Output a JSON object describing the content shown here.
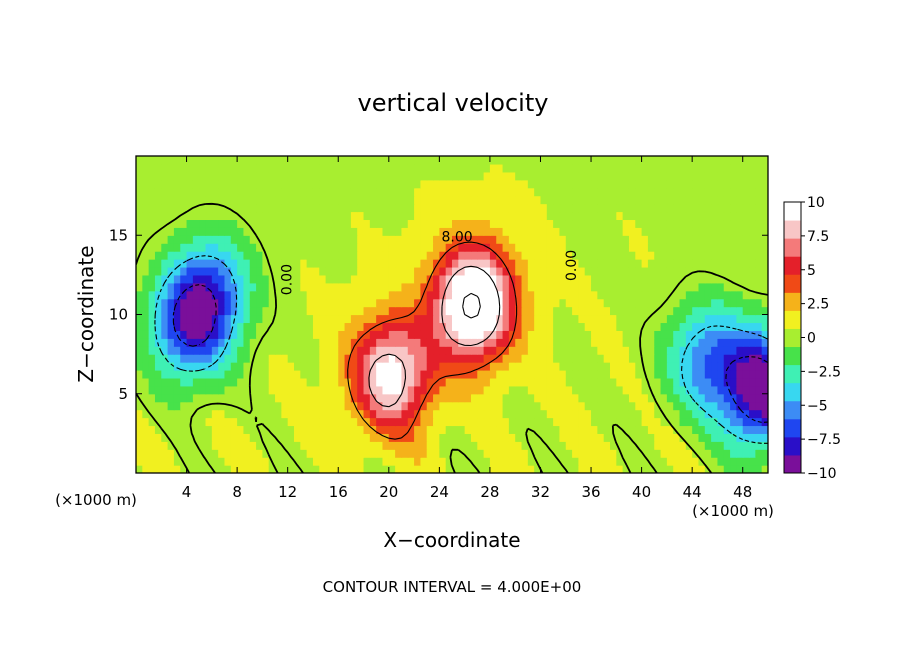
{
  "chart_data": {
    "type": "heatmap",
    "title": "vertical velocity",
    "xlabel": "X−coordinate",
    "ylabel": "Z−coordinate",
    "x_unit_left": "(×1000 m)",
    "x_unit_right": "(×1000 m)",
    "xlim": [
      0,
      50
    ],
    "ylim": [
      0,
      20
    ],
    "x_ticks": [
      4,
      8,
      12,
      16,
      20,
      24,
      28,
      32,
      36,
      40,
      44,
      48
    ],
    "x_tick_labels": [
      "4",
      "8",
      "12",
      "16",
      "20",
      "24",
      "28",
      "32",
      "36",
      "40",
      "44",
      "48"
    ],
    "y_ticks": [
      5,
      10,
      15
    ],
    "y_tick_labels": [
      "5",
      "10",
      "15"
    ],
    "colorbar": {
      "range": [
        -10,
        10
      ],
      "ticks": [
        10,
        7.5,
        5,
        2.5,
        0,
        -2.5,
        -5,
        -7.5,
        -10
      ],
      "tick_labels": [
        "10",
        "7.5",
        "5",
        "2.5",
        "0",
        "−2.5",
        "−5",
        "−7.5",
        "−10"
      ],
      "colors": [
        "#7a0f9a",
        "#2a0fc8",
        "#1f46f0",
        "#3c8cf5",
        "#38d7f0",
        "#3ff0b4",
        "#47e24a",
        "#a8ee30",
        "#f1f020",
        "#f5b21a",
        "#f04a16",
        "#e4202a",
        "#f47a7a",
        "#f8c6c6",
        "#ffffff"
      ]
    },
    "contour_labels": [
      {
        "text": "0.00",
        "x": 12.3,
        "z": 12.2
      },
      {
        "text": "8.00",
        "x": 25.4,
        "z": 14.6
      },
      {
        "text": "0.00",
        "x": 34.8,
        "z": 13.1
      }
    ],
    "features": [
      {
        "x": 4,
        "z": 9.2,
        "w": -8
      },
      {
        "x": 6,
        "z": 11.5,
        "w": -5
      },
      {
        "x": 20,
        "z": 6,
        "w": 9
      },
      {
        "x": 26.5,
        "z": 10.5,
        "w": 12
      },
      {
        "x": 45,
        "z": 7,
        "w": -6
      },
      {
        "x": 49.5,
        "z": 5,
        "w": -11
      }
    ],
    "footnote": "CONTOUR INTERVAL = 4.000E+00"
  }
}
